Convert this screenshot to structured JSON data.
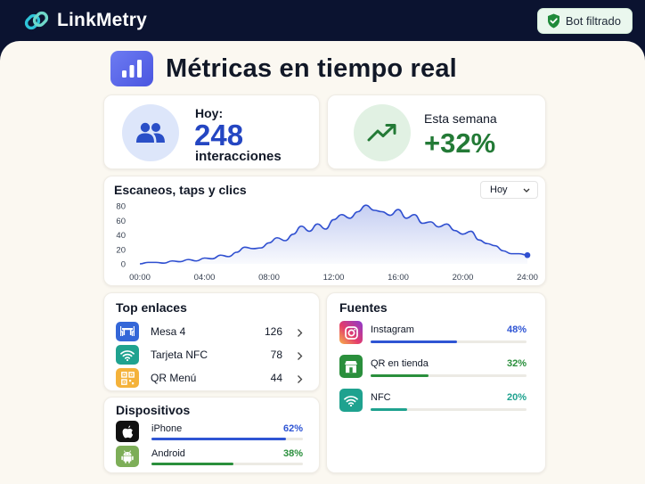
{
  "app": {
    "name": "LinkMetry"
  },
  "badge": {
    "label": "Bot filtrado"
  },
  "page": {
    "title": "Métricas en tiempo real"
  },
  "kpis": {
    "today": {
      "label": "Hoy:",
      "value": "248",
      "sub": "interacciones"
    },
    "week": {
      "label": "Esta semana",
      "value": "+32%"
    }
  },
  "activity": {
    "title": "Escaneos, taps y clics",
    "range_selected": "Hoy",
    "chart_data": {
      "type": "area",
      "x_tick_labels": [
        "00:00",
        "04:00",
        "08:00",
        "12:00",
        "16:00",
        "20:00",
        "24:00"
      ],
      "y_tick_labels": [
        "0",
        "20",
        "40",
        "60",
        "80"
      ],
      "ylim": [
        0,
        80
      ],
      "xlim": [
        0,
        24
      ],
      "x": [
        0,
        0.5,
        1,
        1.5,
        2,
        2.5,
        3,
        3.5,
        4,
        4.5,
        5,
        5.5,
        6,
        6.5,
        7,
        7.5,
        8,
        8.5,
        9,
        9.5,
        10,
        10.5,
        11,
        11.5,
        12,
        12.5,
        13,
        13.5,
        14,
        14.5,
        15,
        15.5,
        16,
        16.5,
        17,
        17.5,
        18,
        18.5,
        19,
        19.5,
        20,
        20.5,
        21,
        21.5,
        22,
        22.5,
        23,
        23.5,
        24
      ],
      "values": [
        0,
        2,
        2,
        1,
        4,
        3,
        6,
        4,
        8,
        7,
        12,
        10,
        16,
        23,
        21,
        22,
        29,
        36,
        32,
        41,
        52,
        45,
        55,
        48,
        61,
        68,
        63,
        72,
        81,
        74,
        72,
        67,
        75,
        63,
        68,
        56,
        58,
        51,
        55,
        46,
        41,
        45,
        33,
        28,
        25,
        18,
        14,
        14,
        12
      ],
      "color": "#2f4fd0"
    }
  },
  "top_links": {
    "title": "Top enlaces",
    "items": [
      {
        "icon": "table-chairs-icon",
        "label": "Mesa 4",
        "count": "126",
        "color": "#3467d8"
      },
      {
        "icon": "wifi-icon",
        "label": "Tarjeta NFC",
        "count": "78",
        "color": "#1fa28f"
      },
      {
        "icon": "qr-code-icon",
        "label": "QR Menú",
        "count": "44",
        "color": "#f4b23a"
      }
    ]
  },
  "devices": {
    "title": "Dispositivos",
    "items": [
      {
        "icon": "apple-icon",
        "label": "iPhone",
        "pct": "62%",
        "value": 0.62,
        "color": "#2f55d4",
        "icon_bg": "#111111"
      },
      {
        "icon": "android-icon",
        "label": "Android",
        "pct": "38%",
        "value": 0.38,
        "color": "#2a8f3c",
        "icon_bg": "#7dae58"
      }
    ]
  },
  "sources": {
    "title": "Fuentes",
    "items": [
      {
        "icon": "instagram-icon",
        "label": "Instagram",
        "pct": "48%",
        "value": 0.48,
        "color": "#2f55d4"
      },
      {
        "icon": "store-icon",
        "label": "QR en tienda",
        "pct": "32%",
        "value": 0.32,
        "color": "#2a8f3c"
      },
      {
        "icon": "wifi-icon",
        "label": "NFC",
        "pct": "20%",
        "value": 0.2,
        "color": "#1fa28f"
      }
    ]
  }
}
